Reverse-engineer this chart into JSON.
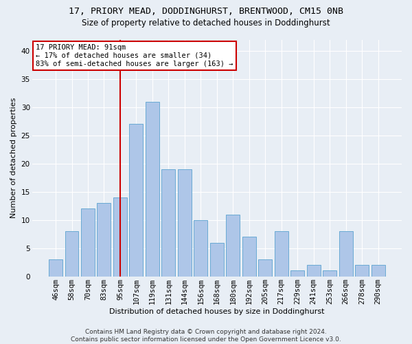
{
  "title1": "17, PRIORY MEAD, DODDINGHURST, BRENTWOOD, CM15 0NB",
  "title2": "Size of property relative to detached houses in Doddinghurst",
  "xlabel": "Distribution of detached houses by size in Doddinghurst",
  "ylabel": "Number of detached properties",
  "footnote": "Contains HM Land Registry data © Crown copyright and database right 2024.\nContains public sector information licensed under the Open Government Licence v3.0.",
  "categories": [
    "46sqm",
    "58sqm",
    "70sqm",
    "83sqm",
    "95sqm",
    "107sqm",
    "119sqm",
    "131sqm",
    "144sqm",
    "156sqm",
    "168sqm",
    "180sqm",
    "192sqm",
    "205sqm",
    "217sqm",
    "229sqm",
    "241sqm",
    "253sqm",
    "266sqm",
    "278sqm",
    "290sqm"
  ],
  "values": [
    3,
    8,
    12,
    13,
    14,
    27,
    31,
    19,
    19,
    10,
    6,
    11,
    7,
    3,
    8,
    1,
    2,
    1,
    8,
    2,
    2
  ],
  "bar_color": "#aec6e8",
  "bar_edge_color": "#6aaad4",
  "vline_x": 4,
  "vline_color": "#cc0000",
  "annotation_text": "17 PRIORY MEAD: 91sqm\n← 17% of detached houses are smaller (34)\n83% of semi-detached houses are larger (163) →",
  "annotation_box_color": "#ffffff",
  "annotation_box_edge": "#cc0000",
  "ylim": [
    0,
    42
  ],
  "yticks": [
    0,
    5,
    10,
    15,
    20,
    25,
    30,
    35,
    40
  ],
  "background_color": "#e8eef5",
  "grid_color": "#ffffff",
  "title1_fontsize": 9.5,
  "title2_fontsize": 8.5,
  "xlabel_fontsize": 8,
  "ylabel_fontsize": 8,
  "tick_fontsize": 7.5,
  "annot_fontsize": 7.5,
  "footnote_fontsize": 6.5
}
